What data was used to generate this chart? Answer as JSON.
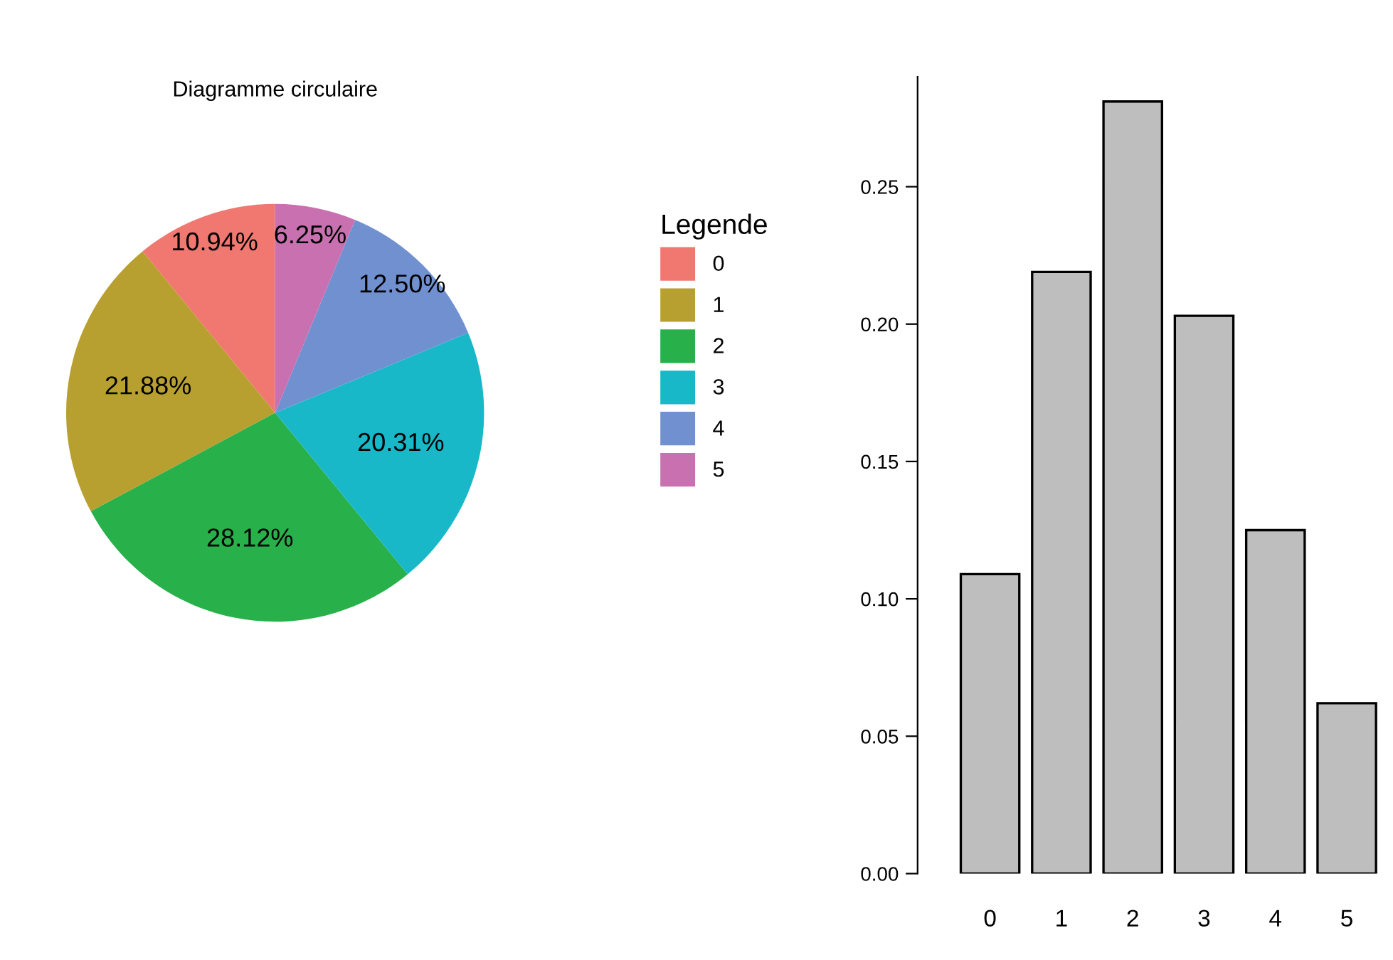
{
  "chart_data": [
    {
      "type": "pie",
      "title": "Diagramme circulaire",
      "categories": [
        "0",
        "1",
        "2",
        "3",
        "4",
        "5"
      ],
      "values": [
        10.94,
        21.88,
        28.12,
        20.31,
        12.5,
        6.25
      ],
      "colors": [
        "#f07870",
        "#b8a030",
        "#28b04a",
        "#18b8c8",
        "#7090d0",
        "#c870b0"
      ],
      "value_labels": [
        "10.94%",
        "21.88%",
        "28.12%",
        "20.31%",
        "12.50%",
        "6.25%"
      ],
      "legend_title": "Legende",
      "legend": "right"
    },
    {
      "type": "bar",
      "categories": [
        "0",
        "1",
        "2",
        "3",
        "4",
        "5"
      ],
      "values": [
        0.109,
        0.219,
        0.281,
        0.203,
        0.125,
        0.062
      ],
      "color": "#bebebe",
      "ylim": [
        0,
        0.29
      ],
      "yticks": [
        {
          "value": 0,
          "label": "0.00"
        },
        {
          "value": 0.05,
          "label": "0.05"
        },
        {
          "value": 0.1,
          "label": "0.10"
        },
        {
          "value": 0.15,
          "label": "0.15"
        },
        {
          "value": 0.2,
          "label": "0.20"
        },
        {
          "value": 0.25,
          "label": "0.25"
        }
      ],
      "grid": false
    }
  ]
}
